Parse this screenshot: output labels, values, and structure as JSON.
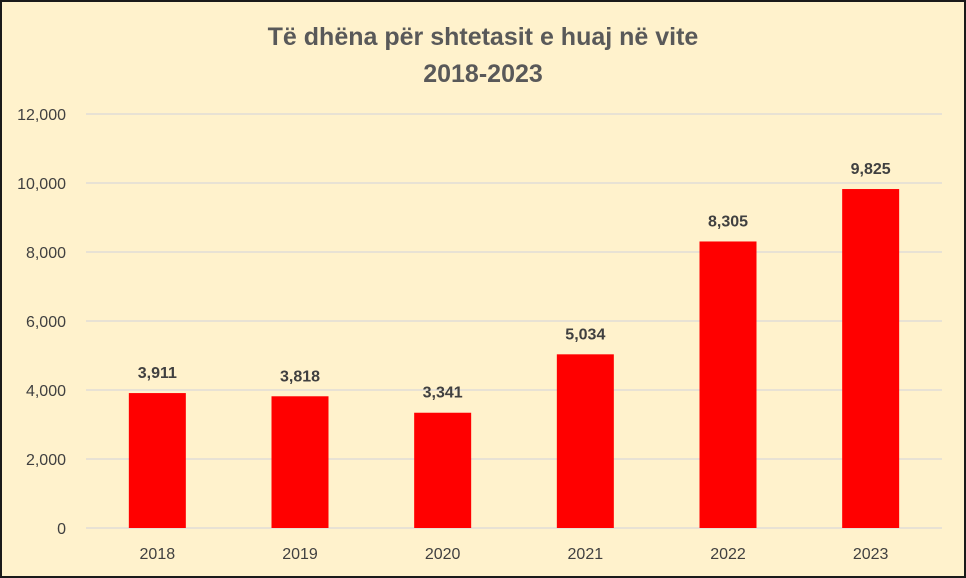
{
  "chart_data": {
    "type": "bar",
    "title": "Të dhëna për shtetasit e huaj në vite",
    "subtitle": "2018-2023",
    "categories": [
      "2018",
      "2019",
      "2020",
      "2021",
      "2022",
      "2023"
    ],
    "values": [
      3911,
      3818,
      3341,
      5034,
      8305,
      9825
    ],
    "data_labels": [
      "3,911",
      "3,818",
      "3,341",
      "5,034",
      "8,305",
      "9,825"
    ],
    "y_ticks": [
      "0",
      "2,000",
      "4,000",
      "6,000",
      "8,000",
      "10,000",
      "12,000"
    ],
    "y_tick_values": [
      0,
      2000,
      4000,
      6000,
      8000,
      10000,
      12000
    ],
    "ylim": [
      0,
      12000
    ],
    "grid": true,
    "legend": "none",
    "xlabel": "",
    "ylabel": "",
    "colors": {
      "bar": "#ff0000",
      "background": "#fff2cc",
      "gridline": "#d9d9d9",
      "title": "#595959",
      "text": "#404040"
    }
  }
}
